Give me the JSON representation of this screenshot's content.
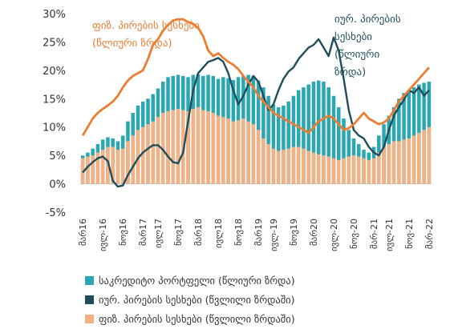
{
  "chart_data": {
    "type": "area",
    "y_tick_labels": [
      "30%",
      "25%",
      "20%",
      "15%",
      "10%",
      "5%",
      "0%",
      "-5%"
    ],
    "ylim": [
      -5,
      30
    ],
    "x_tick_labels": [
      "მარ16",
      "ივლ-16",
      "ნოვ16",
      "მარ17",
      "ივლ17",
      "ნოვ17",
      "მარ18",
      "ივლ18",
      "ნოვ18",
      "მარ19",
      "ივლ-19",
      "ნოვ19",
      "მარ20",
      "ივლ-20",
      "ნოვ-20",
      "მარ-21",
      "ივლ-21",
      "ნოვ-21",
      "მარ-22"
    ],
    "annotations": {
      "phys": [
        "ფიზ. პირების სესხები",
        "(წლიური ზრდა)"
      ],
      "jur": [
        "იურ. პირების",
        "სესხები",
        "(წლიური",
        "ზრდა)"
      ]
    },
    "colors": {
      "portfolio": "#2aa7b3",
      "jur": "#1f4e5b",
      "phys": "#ed7d31",
      "phys_fill": "#f4b183"
    },
    "series": [
      {
        "name": "საკრედიტო პორტფელი (წლიური ზრდა)",
        "kind": "bars",
        "values": [
          5.0,
          5.5,
          6.2,
          7.0,
          7.8,
          8.2,
          8.0,
          7.5,
          8.5,
          11.0,
          12.5,
          13.8,
          14.5,
          15.0,
          15.8,
          16.8,
          18.0,
          18.8,
          19.0,
          19.2,
          19.0,
          18.8,
          19.2,
          19.3,
          19.0,
          19.2,
          19.0,
          18.5,
          18.8,
          18.6,
          18.3,
          18.8,
          19.0,
          19.2,
          19.0,
          18.2,
          17.0,
          15.5,
          14.0,
          13.5,
          13.8,
          14.5,
          15.5,
          16.5,
          17.0,
          17.5,
          18.0,
          18.2,
          18.0,
          17.0,
          15.5,
          13.5,
          11.5,
          9.5,
          8.0,
          7.0,
          6.0,
          5.5,
          6.5,
          8.5,
          10.5,
          12.0,
          13.5,
          15.0,
          16.0,
          16.5,
          17.0,
          17.5,
          17.8,
          18.0
        ]
      },
      {
        "name": "იურ. პირების სესხები (წვლილი ზრდაში)",
        "kind": "line",
        "values": [
          2.0,
          3.0,
          3.8,
          4.5,
          4.8,
          4.0,
          0.5,
          -0.5,
          -0.3,
          1.5,
          3.0,
          4.5,
          5.5,
          6.2,
          6.8,
          6.8,
          6.0,
          4.8,
          3.8,
          3.6,
          5.5,
          11.0,
          16.5,
          19.5,
          20.5,
          21.5,
          21.8,
          22.2,
          21.5,
          19.5,
          16.5,
          14.0,
          15.5,
          17.5,
          19.0,
          18.0,
          15.5,
          13.0,
          14.0,
          16.5,
          18.5,
          19.8,
          20.5,
          22.0,
          23.0,
          24.0,
          24.5,
          25.5,
          24.0,
          22.5,
          25.8,
          23.5,
          18.5,
          13.0,
          9.5,
          8.5,
          8.0,
          6.5,
          5.5,
          5.0,
          6.5,
          9.5,
          12.0,
          13.5,
          14.8,
          16.5,
          16.0,
          17.0,
          15.5,
          16.5
        ]
      },
      {
        "name": "ფიზ. პირების სესხები (წვლილი ზრდაში)",
        "kind": "line+area",
        "values": [
          8.5,
          10.0,
          11.5,
          12.5,
          13.2,
          13.8,
          14.5,
          15.5,
          17.0,
          18.2,
          19.0,
          19.5,
          20.0,
          22.0,
          24.5,
          25.5,
          27.0,
          28.0,
          28.8,
          29.0,
          29.0,
          28.5,
          28.2,
          27.5,
          26.0,
          23.5,
          22.5,
          23.0,
          22.2,
          21.5,
          21.0,
          20.2,
          19.0,
          18.0,
          17.0,
          15.5,
          14.5,
          13.5,
          12.5,
          12.0,
          11.5,
          11.0,
          10.5,
          10.0,
          9.5,
          9.0,
          10.0,
          11.0,
          11.5,
          12.0,
          11.5,
          10.5,
          9.5,
          9.8,
          10.5,
          11.5,
          12.5,
          11.5,
          11.0,
          10.5,
          10.8,
          11.5,
          13.0,
          14.5,
          15.5,
          16.5,
          17.5,
          18.5,
          19.5,
          20.5
        ],
        "area_values": [
          4.5,
          4.8,
          5.0,
          5.5,
          6.0,
          6.5,
          6.5,
          6.0,
          6.2,
          7.5,
          8.5,
          9.5,
          10.0,
          10.5,
          11.0,
          11.8,
          12.5,
          12.8,
          13.0,
          13.2,
          13.0,
          12.8,
          13.2,
          13.5,
          13.0,
          12.8,
          12.5,
          12.0,
          11.8,
          11.5,
          11.0,
          11.2,
          11.5,
          11.0,
          10.5,
          9.5,
          8.0,
          7.0,
          6.2,
          5.8,
          6.0,
          6.2,
          6.5,
          6.5,
          6.2,
          5.8,
          5.5,
          5.2,
          5.0,
          4.8,
          4.5,
          4.2,
          4.5,
          4.8,
          5.0,
          4.8,
          4.5,
          4.2,
          4.5,
          5.5,
          6.5,
          7.0,
          7.5,
          7.5,
          7.8,
          8.0,
          8.5,
          9.0,
          9.5,
          10.0
        ]
      }
    ]
  }
}
